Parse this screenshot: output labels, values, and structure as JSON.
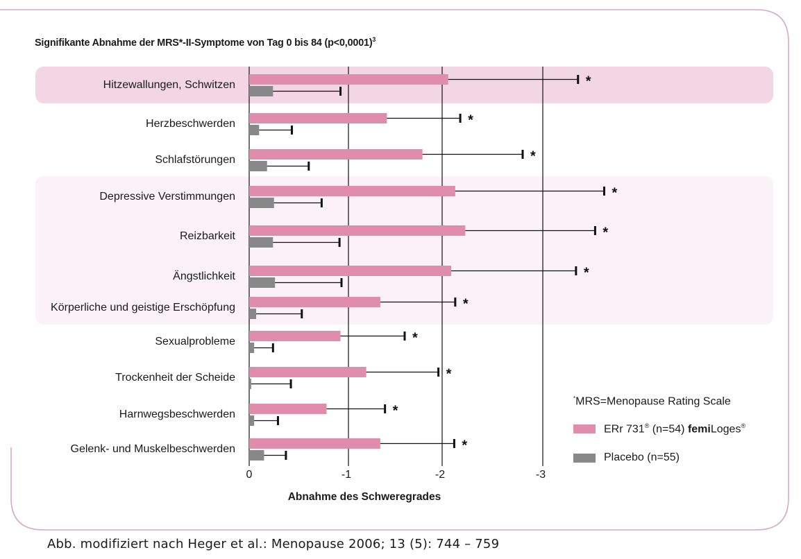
{
  "colors": {
    "frame": "#d8a8c4",
    "band_strong": "#f3d6e3",
    "band_light": "#faf2f6",
    "erl_bar": "#e08dac",
    "placebo_bar": "#888888",
    "text": "#1a1a1a"
  },
  "title": {
    "text": "Signifikante Abnahme der MRS*-II-Symptome von Tag 0 bis 84 (p<0,0001)",
    "superscript": "3"
  },
  "legend": {
    "note_marker": "*",
    "note": "MRS=Menopause Rating Scale",
    "series1_prefix": "ERr 731",
    "series1_reg": "®",
    "series1_mid": " (n=54) ",
    "series1_brand_bold": "femi",
    "series1_brand_rest": "Loges",
    "series1_brand_reg": "®",
    "series2": "Placebo (n=55)"
  },
  "caption": "Abb. modifiziert nach Heger et al.: Menopause 2006; 13 (5): 744 – 759",
  "chart_data": {
    "type": "bar",
    "orientation": "horizontal",
    "title": "Signifikante Abnahme der MRS*-II-Symptome von Tag 0 bis 84 (p<0,0001)³",
    "xlabel": "Abnahme des Schweregrades",
    "ylabel": "",
    "xlim": [
      0,
      -3
    ],
    "xticks": [
      0,
      -1,
      -2,
      -3
    ],
    "xtick_labels": [
      "0",
      "-1",
      "-2",
      "-3"
    ],
    "grid": "vertical lines at ticks",
    "legend_position": "bottom-right",
    "categories": [
      "Hitzewallungen, Schwitzen",
      "Herzbeschwerden",
      "Schlafstörungen",
      "Depressive Verstimmungen",
      "Reizbarkeit",
      "Ängstlichkeit",
      "Körperliche und geistige Erschöpfung",
      "Sexualprobleme",
      "Trockenheit der Scheide",
      "Harnwegsbeschwerden",
      "Gelenk- und Muskelbeschwerden"
    ],
    "highlight_bands": [
      {
        "rows": [
          0,
          0
        ],
        "style": "strong"
      },
      {
        "rows": [
          3,
          6
        ],
        "style": "light"
      }
    ],
    "significance_marker": "*",
    "series": [
      {
        "name": "ERr 731® (n=54) femiLoges®",
        "color": "#e08dac",
        "values": [
          -2.06,
          -1.41,
          -1.79,
          -2.13,
          -2.23,
          -2.09,
          -1.34,
          -0.92,
          -1.19,
          -0.78,
          -1.34
        ],
        "error_upper": [
          -3.35,
          -2.18,
          -2.8,
          -3.61,
          -3.52,
          -3.33,
          -2.13,
          -1.6,
          -1.96,
          -1.39,
          -2.12
        ],
        "significant": [
          true,
          true,
          true,
          true,
          true,
          true,
          true,
          true,
          true,
          true,
          true
        ]
      },
      {
        "name": "Placebo (n=55)",
        "color": "#888888",
        "values": [
          -0.24,
          -0.1,
          -0.18,
          -0.25,
          -0.24,
          -0.26,
          -0.07,
          -0.05,
          -0.02,
          -0.05,
          -0.15
        ],
        "error_upper": [
          -0.92,
          -0.43,
          -0.6,
          -0.73,
          -0.91,
          -0.93,
          -0.53,
          -0.24,
          -0.42,
          -0.29,
          -0.37
        ],
        "significant": [
          false,
          false,
          false,
          false,
          false,
          false,
          false,
          false,
          false,
          false,
          false
        ]
      }
    ]
  }
}
